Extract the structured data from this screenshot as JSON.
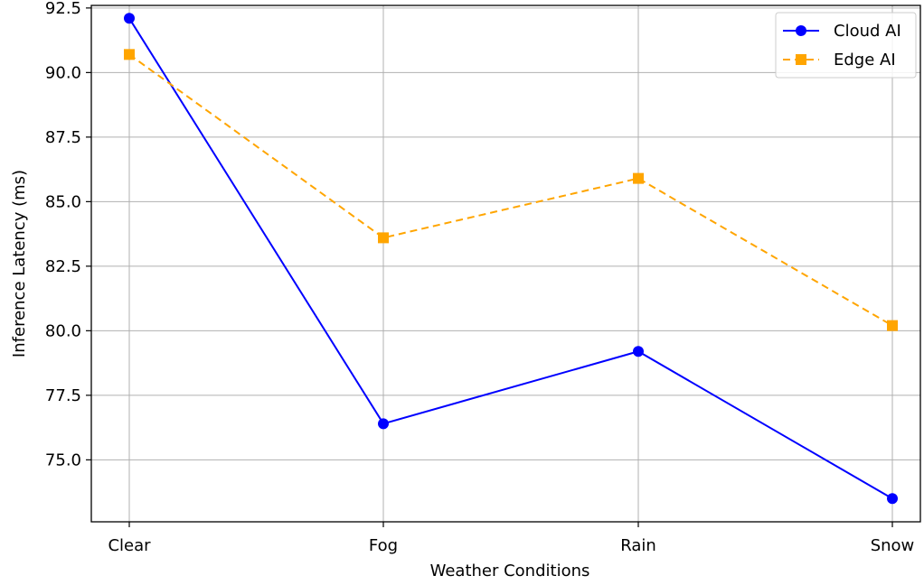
{
  "chart_data": {
    "type": "line",
    "title": "",
    "xlabel": "Weather Conditions",
    "ylabel": "Inference Latency (ms)",
    "categories": [
      "Clear",
      "Fog",
      "Rain",
      "Snow"
    ],
    "ylim": [
      72.6,
      92.6
    ],
    "yticks": [
      75.0,
      77.5,
      80.0,
      82.5,
      85.0,
      87.5,
      90.0,
      92.5
    ],
    "ytick_labels": [
      "75.0",
      "77.5",
      "80.0",
      "82.5",
      "85.0",
      "87.5",
      "90.0",
      "92.5"
    ],
    "grid": true,
    "legend_position": "top-right",
    "series": [
      {
        "name": "Cloud AI",
        "values": [
          92.1,
          76.4,
          79.2,
          73.5
        ],
        "color": "#0000ff",
        "marker": "circle",
        "line_style": "solid"
      },
      {
        "name": "Edge AI",
        "values": [
          90.7,
          83.6,
          85.9,
          80.2
        ],
        "color": "#ffa500",
        "marker": "square",
        "line_style": "dashed"
      }
    ]
  }
}
